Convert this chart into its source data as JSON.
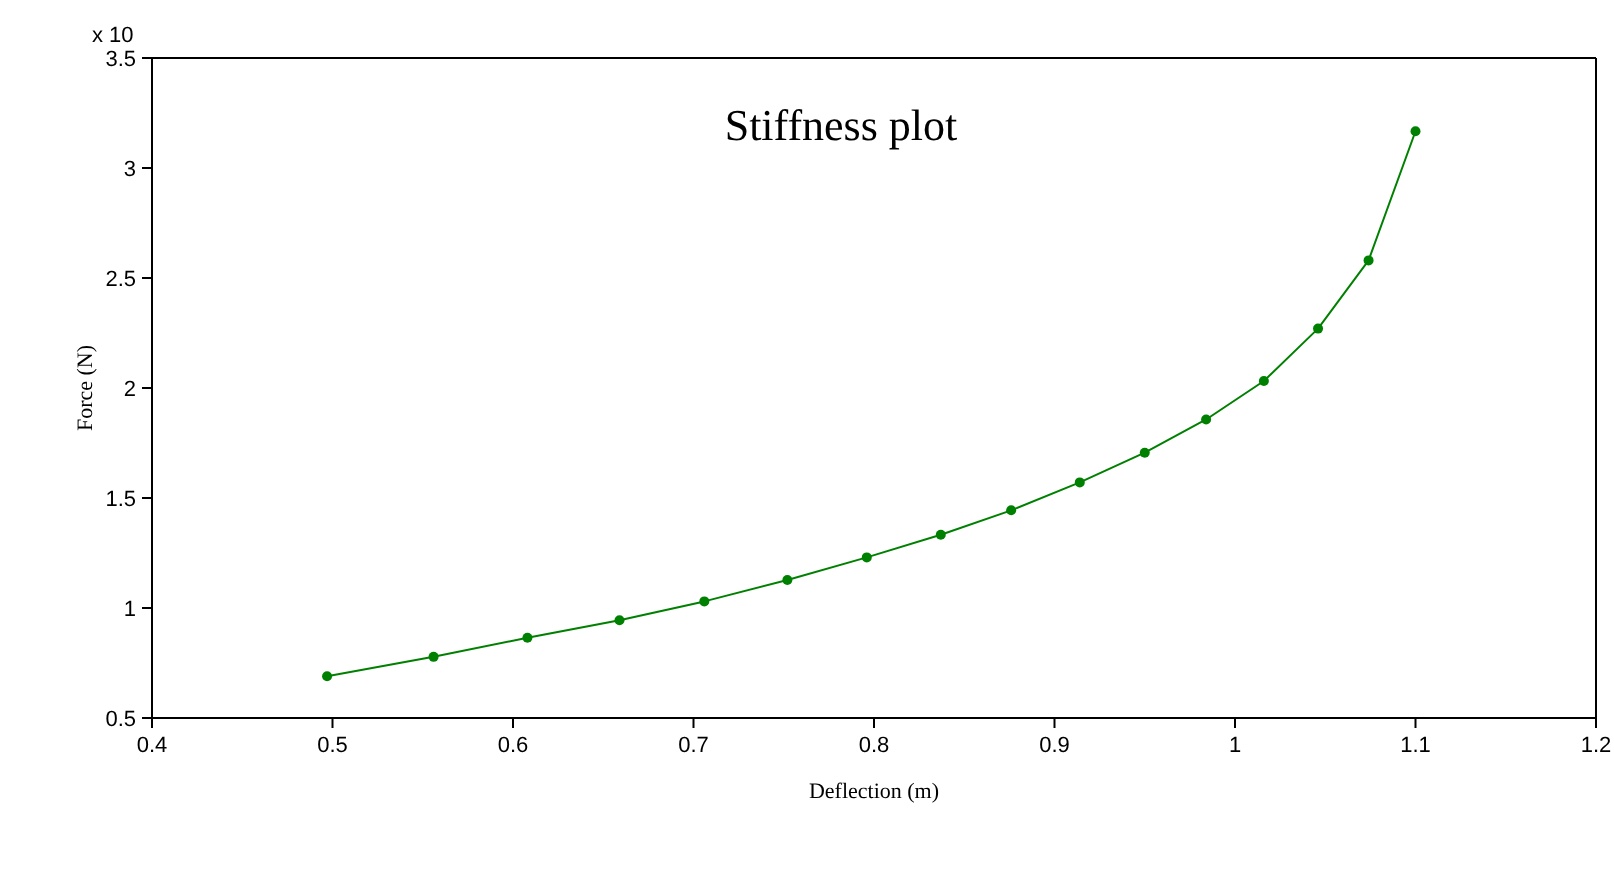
{
  "chart_data": {
    "type": "line",
    "title": "Stiffness plot",
    "xlabel": "Deflection (m)",
    "ylabel": "Force (N)",
    "annotations": [
      "x 10"
    ],
    "x": [
      0.497,
      0.556,
      0.608,
      0.659,
      0.706,
      0.752,
      0.796,
      0.837,
      0.876,
      0.914,
      0.95,
      0.984,
      1.016,
      1.046,
      1.074,
      1.1
    ],
    "series": [
      {
        "color": "#008000",
        "values": [
          0.69,
          0.778,
          0.865,
          0.944,
          1.03,
          1.127,
          1.23,
          1.333,
          1.444,
          1.571,
          1.706,
          1.857,
          2.032,
          2.27,
          2.58,
          3.167
        ]
      }
    ],
    "xlim": [
      0.4,
      1.2
    ],
    "xticks": [
      0.4,
      0.5,
      0.6,
      0.7,
      0.8,
      0.9,
      1,
      1.1,
      1.2
    ],
    "ylim": [
      0.5,
      3.5
    ],
    "yticks": [
      0.5,
      1,
      1.5,
      2,
      2.5,
      3,
      3.5
    ],
    "grid": false,
    "legend": false,
    "marker": "circle",
    "line_style": "solid"
  }
}
